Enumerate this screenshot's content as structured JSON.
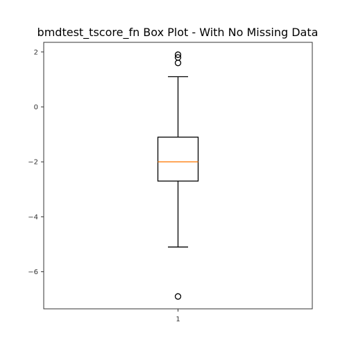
{
  "chart_data": {
    "type": "box",
    "title": "bmdtest_tscore_fn Box Plot - With No Missing Data",
    "xlabel": "",
    "ylabel": "",
    "categories": [
      "1"
    ],
    "ylim": [
      -7.35,
      2.35
    ],
    "yticks": [
      {
        "value": 2,
        "label": "2"
      },
      {
        "value": 0,
        "label": "0"
      },
      {
        "value": -2,
        "label": "−2"
      },
      {
        "value": -4,
        "label": "−4"
      },
      {
        "value": -6,
        "label": "−6"
      }
    ],
    "boxes": [
      {
        "name": "1",
        "whisker_low": -5.1,
        "q1": -2.7,
        "median": -2.0,
        "q3": -1.1,
        "whisker_high": 1.1,
        "outliers": [
          1.9,
          1.8,
          1.6,
          -6.9
        ]
      }
    ],
    "grid": false,
    "colors": {
      "box": "#000000",
      "median": "#ff7f0e",
      "outlier": "#000000",
      "axes": "#333333"
    }
  }
}
